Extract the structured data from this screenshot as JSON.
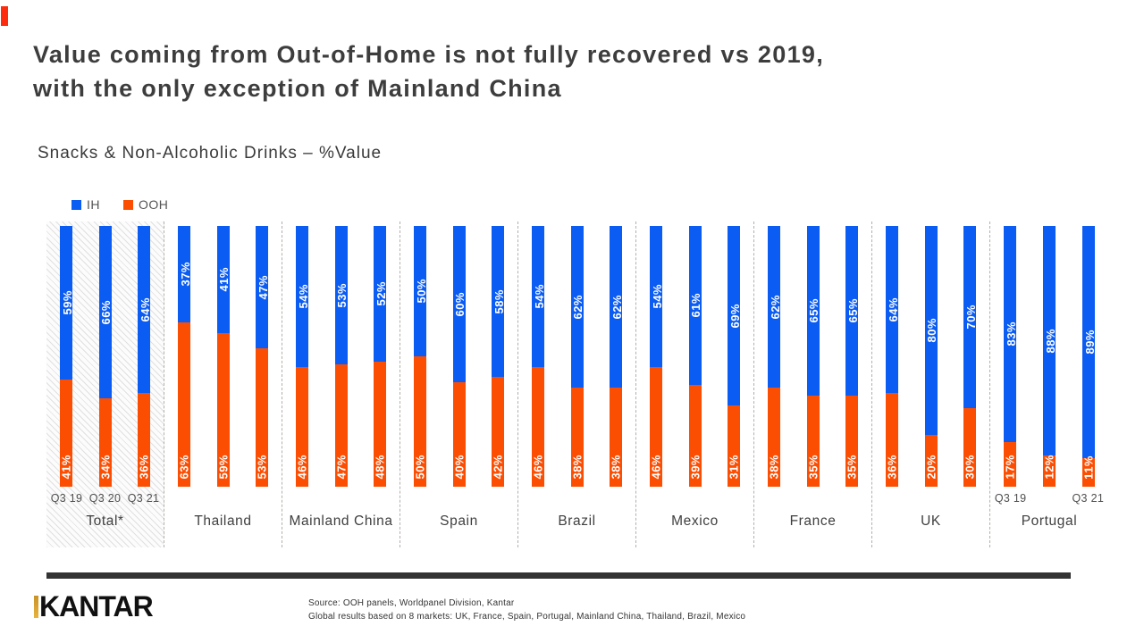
{
  "accent": {
    "ih_color": "#0B5CF2",
    "ooh_color": "#FC4E03",
    "separator_color": "#b3b0ac",
    "footer_rule_color": "#333333",
    "logo_accent_color": "#E7B43C",
    "corner_mark_color": "#FF2B0E"
  },
  "header": {
    "title_line1": "Value coming from Out-of-Home is not fully recovered vs 2019,",
    "title_line2": "with the only exception of Mainland China",
    "subtitle": "Snacks & Non-Alcoholic Drinks – %Value"
  },
  "legend": {
    "ih_label": "IH",
    "ooh_label": "OOH"
  },
  "chart_data": {
    "type": "bar",
    "stacked": true,
    "unit": "%",
    "ylim": [
      0,
      100
    ],
    "legend_position": "top-left",
    "series_names": [
      "IH",
      "OOH"
    ],
    "value_label_suffix": "%",
    "groups": [
      {
        "name": "Total*",
        "highlight": true,
        "x_labels": [
          "Q3 19",
          "Q3 20",
          "Q3 21"
        ],
        "ih": [
          59,
          66,
          64
        ],
        "ooh": [
          41,
          34,
          36
        ]
      },
      {
        "name": "Thailand",
        "x_labels": [
          "",
          "",
          ""
        ],
        "ih": [
          37,
          41,
          47
        ],
        "ooh": [
          63,
          59,
          53
        ]
      },
      {
        "name": "Mainland China",
        "x_labels": [
          "",
          "",
          ""
        ],
        "ih": [
          54,
          53,
          52
        ],
        "ooh": [
          46,
          47,
          48
        ]
      },
      {
        "name": "Spain",
        "x_labels": [
          "",
          "",
          ""
        ],
        "ih": [
          50,
          60,
          58
        ],
        "ooh": [
          50,
          40,
          42
        ]
      },
      {
        "name": "Brazil",
        "x_labels": [
          "",
          "",
          ""
        ],
        "ih": [
          54,
          62,
          62
        ],
        "ooh": [
          46,
          38,
          38
        ]
      },
      {
        "name": "Mexico",
        "x_labels": [
          "",
          "",
          ""
        ],
        "ih": [
          54,
          61,
          69
        ],
        "ooh": [
          46,
          39,
          31
        ]
      },
      {
        "name": "France",
        "x_labels": [
          "",
          "",
          ""
        ],
        "ih": [
          62,
          65,
          65
        ],
        "ooh": [
          38,
          35,
          35
        ]
      },
      {
        "name": "UK",
        "x_labels": [
          "",
          "",
          ""
        ],
        "ih": [
          64,
          80,
          70
        ],
        "ooh": [
          36,
          20,
          30
        ]
      },
      {
        "name": "Portugal",
        "x_labels": [
          "Q3 19",
          "",
          "Q3 21"
        ],
        "ih": [
          83,
          88,
          89
        ],
        "ooh": [
          17,
          12,
          11
        ]
      }
    ]
  },
  "footer": {
    "logo_text": "KANTAR",
    "source_line1": "Source: OOH panels, Worldpanel Division, Kantar",
    "source_line2": "Global results based on 8 markets: UK, France, Spain, Portugal, Mainland China, Thailand, Brazil, Mexico"
  }
}
